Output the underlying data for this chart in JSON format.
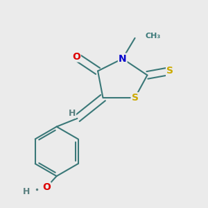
{
  "bg_color": "#ebebeb",
  "bond_color": "#3a7878",
  "atom_colors": {
    "O": "#dd0000",
    "N": "#0000cc",
    "S": "#ccaa00",
    "H": "#5a8080",
    "C": "#3a7878"
  },
  "lw": 1.5,
  "fs": 10,
  "dbo": 0.018
}
